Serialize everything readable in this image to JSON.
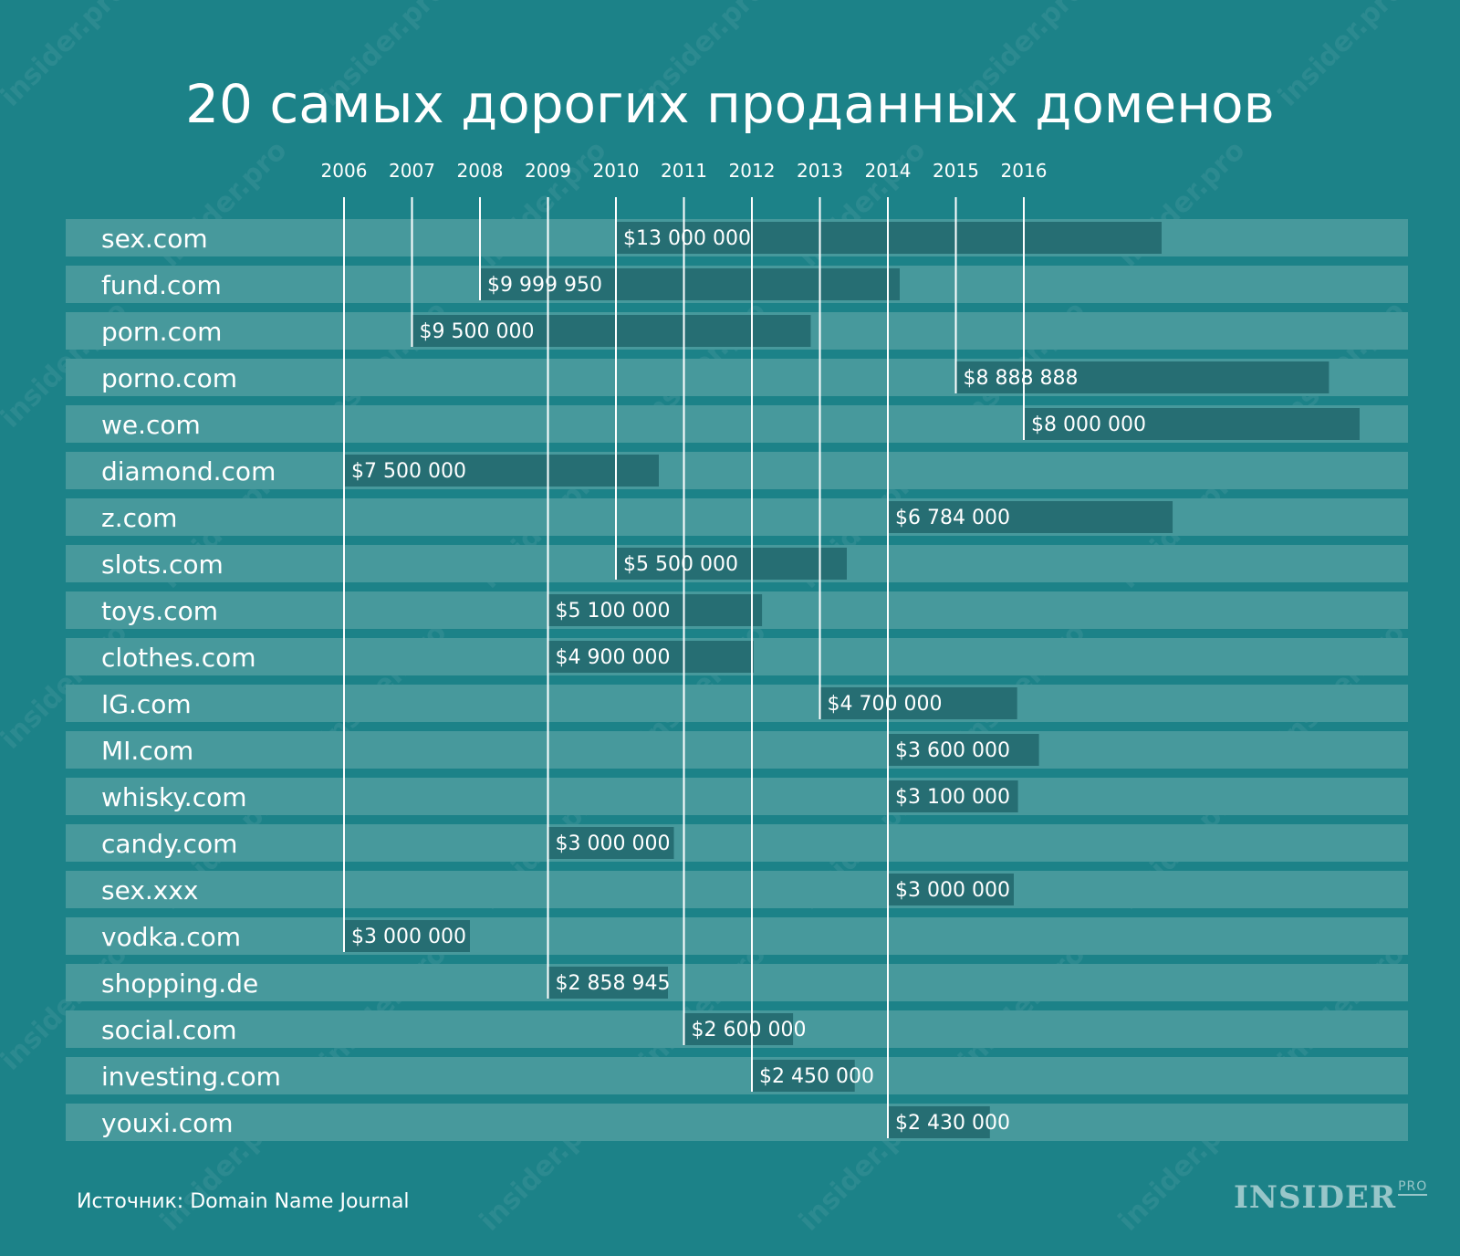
{
  "chart_data": {
    "type": "bar",
    "title": "20 самых дорогих проданных доменов",
    "x_ticks": [
      "2006",
      "2007",
      "2008",
      "2009",
      "2010",
      "2011",
      "2012",
      "2013",
      "2014",
      "2015",
      "2016"
    ],
    "rows": [
      {
        "domain": "sex.com",
        "year": 2010,
        "value": 13000000,
        "label": "$13 000 000"
      },
      {
        "domain": "fund.com",
        "year": 2008,
        "value": 9999950,
        "label": "$9 999 950"
      },
      {
        "domain": "porn.com",
        "year": 2007,
        "value": 9500000,
        "label": "$9 500 000"
      },
      {
        "domain": "porno.com",
        "year": 2015,
        "value": 8888888,
        "label": "$8 888 888"
      },
      {
        "domain": "we.com",
        "year": 2016,
        "value": 8000000,
        "label": "$8 000 000"
      },
      {
        "domain": "diamond.com",
        "year": 2006,
        "value": 7500000,
        "label": "$7 500 000"
      },
      {
        "domain": "z.com",
        "year": 2014,
        "value": 6784000,
        "label": "$6 784 000"
      },
      {
        "domain": "slots.com",
        "year": 2010,
        "value": 5500000,
        "label": "$5 500 000"
      },
      {
        "domain": "toys.com",
        "year": 2009,
        "value": 5100000,
        "label": "$5 100 000"
      },
      {
        "domain": "clothes.com",
        "year": 2009,
        "value": 4900000,
        "label": "$4 900 000"
      },
      {
        "domain": "IG.com",
        "year": 2013,
        "value": 4700000,
        "label": "$4 700 000"
      },
      {
        "domain": "MI.com",
        "year": 2014,
        "value": 3600000,
        "label": "$3 600 000"
      },
      {
        "domain": "whisky.com",
        "year": 2014,
        "value": 3100000,
        "label": "$3 100 000"
      },
      {
        "domain": "candy.com",
        "year": 2009,
        "value": 3000000,
        "label": "$3 000 000"
      },
      {
        "domain": "sex.xxx",
        "year": 2014,
        "value": 3000000,
        "label": "$3 000 000"
      },
      {
        "domain": "vodka.com",
        "year": 2006,
        "value": 3000000,
        "label": "$3 000 000"
      },
      {
        "domain": "shopping.de",
        "year": 2009,
        "value": 2858945,
        "label": "$2 858 945"
      },
      {
        "domain": "social.com",
        "year": 2011,
        "value": 2600000,
        "label": "$2 600 000"
      },
      {
        "domain": "investing.com",
        "year": 2012,
        "value": 2450000,
        "label": "$2 450 000"
      },
      {
        "domain": "youxi.com",
        "year": 2014,
        "value": 2430000,
        "label": "$2 430 000"
      }
    ],
    "colors": {
      "background": "#1c8288",
      "row": "#47999c",
      "bar": "#266e73",
      "text": "#ffffff"
    }
  },
  "footer": {
    "source": "Источник: Domain Name Journal",
    "logo": "INSIDER",
    "logo_sub": "PRO"
  },
  "watermark": "insider.pro"
}
